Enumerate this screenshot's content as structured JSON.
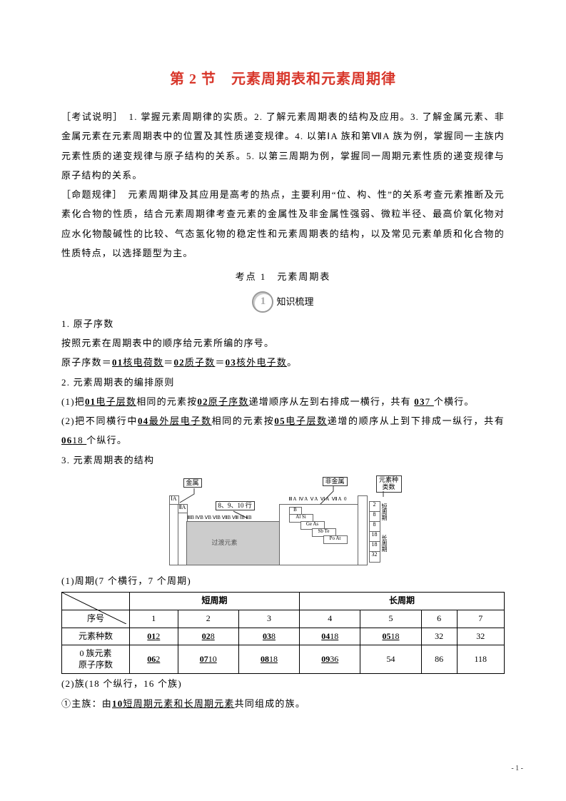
{
  "title": "第 2 节　元素周期表和元素周期律",
  "exam_desc": "［考试说明］　1. 掌握元素周期律的实质。2. 了解元素周期表的结构及应用。3. 了解金属元素、非金属元素在元素周期表中的位置及其性质递变规律。4. 以第ⅠA 族和第ⅦA 族为例，掌握同一主族内元素性质的递变规律与原子结构的关系。5. 以第三周期为例，掌握同一周期元素性质的递变规律与原子结构的关系。",
  "topic_rule": "［命题规律］　元素周期律及其应用是高考的热点，主要利用“位、构、性”的关系考查元素推断及元素化合物的性质，结合元素周期律考查元素的金属性及非金属性强弱、微粒半径、最高价氧化物对应水化物酸碱性的比较、气态氢化物的稳定性和元素周期表的结构，以及常见元素单质和化合物的性质特点，以选择题型为主。",
  "kao_dian": "考点 1　元素周期表",
  "section_label": "知识梳理",
  "s1_h": "1. 原子序数",
  "s1_1": "按照元素在周期表中的顺序给元素所编的序号。",
  "s1_2_pre": "原子序数＝",
  "s1_2_a": "01",
  "s1_2_at": "核电荷数",
  "s1_2_mid1": "＝",
  "s1_2_b": "02",
  "s1_2_bt": "质子数",
  "s1_2_mid2": "＝",
  "s1_2_c": "03",
  "s1_2_ct": "核外电子数",
  "s1_2_end": "。",
  "s2_h": "2. 元素周期表的编排原则",
  "s2_1_a": "(1)把",
  "s2_1_k1": "01",
  "s2_1_t1": "电子层数",
  "s2_1_b": "相同的元素按",
  "s2_1_k2": "02",
  "s2_1_t2": "原子序数",
  "s2_1_c": "递增顺序从左到右排成一横行，共有 ",
  "s2_1_k3": "03",
  "s2_1_t3": "7 ",
  "s2_1_d": "个横行。",
  "s2_2_a": "(2)把不同横行中",
  "s2_2_k1": "04",
  "s2_2_t1": "最外层电子数",
  "s2_2_b": "相同的元素按",
  "s2_2_k2": "05",
  "s2_2_t2": "电子层数",
  "s2_2_c": "递增的顺序从上到下排成一纵行，共有 ",
  "s2_2_k3": "06",
  "s2_2_t3": "18 ",
  "s2_2_d": "个纵行。",
  "s3_h": "3. 元素周期表的结构",
  "diagram": {
    "labels": {
      "metal": "金属",
      "nonmetal": "非金属",
      "species": "元素种类数",
      "mid_cols": "8、9、10 行",
      "transition": "过渡元素"
    },
    "groups_left": "ⅠA",
    "groups_left2": "ⅡA",
    "groups_mid": "ⅢB ⅣB ⅤB ⅥB ⅦB  Ⅷ  ⅠB ⅡB",
    "groups_right": "ⅢA ⅣA ⅤA ⅥA ⅦA 0",
    "rows_right": [
      "2",
      "8",
      "8",
      "18",
      "18",
      "32"
    ],
    "step_elems": [
      "B",
      "Al  Si",
      "Ge As",
      "Sb Te",
      "Po  At"
    ],
    "side_labels": [
      "短周期",
      "长周期"
    ]
  },
  "s3_1": "(1)周期(7 个横行，7 个周期)",
  "table": {
    "header_blank": "",
    "h_short": "短周期",
    "h_long": "长周期",
    "row_seq_label": "序号",
    "row_count_label": "元素种数",
    "row_zero_label_a": "0 族元素",
    "row_zero_label_b": "原子序数",
    "seq": [
      "1",
      "2",
      "3",
      "4",
      "5",
      "6",
      "7"
    ],
    "counts": [
      {
        "k": "01",
        "v": "2"
      },
      {
        "k": "02",
        "v": "8"
      },
      {
        "k": "03",
        "v": "8"
      },
      {
        "k": "04",
        "v": "18"
      },
      {
        "k": "05",
        "v": "18"
      },
      {
        "plain": "32"
      },
      {
        "plain": "32"
      }
    ],
    "zeros": [
      {
        "k": "06",
        "v": "2"
      },
      {
        "k": "07",
        "v": "10"
      },
      {
        "k": "08",
        "v": "18"
      },
      {
        "k": "09",
        "v": "36"
      },
      {
        "plain": "54"
      },
      {
        "plain": "86"
      },
      {
        "plain": "118"
      }
    ]
  },
  "s3_2": "(2)族(18 个纵行，16 个族)",
  "s3_3_a": "①主族：由",
  "s3_3_k": "10",
  "s3_3_t": "短周期元素和长周期元素",
  "s3_3_b": "共同组成的族。",
  "page_number": "- 1 -"
}
